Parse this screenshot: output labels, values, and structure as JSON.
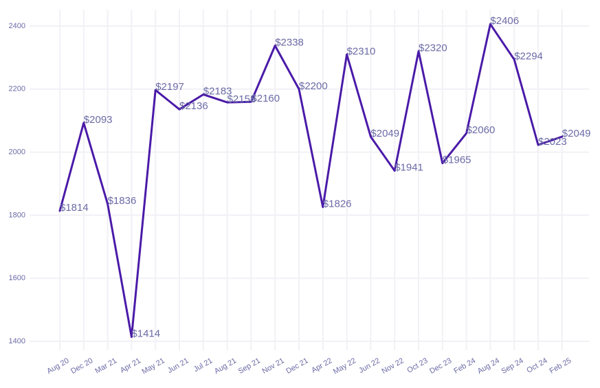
{
  "chart_data": {
    "type": "line",
    "title": "",
    "xlabel": "",
    "ylabel": "",
    "ylim": [
      1380,
      2450
    ],
    "grid": true,
    "legend": "none",
    "line_color": "#4a1aa8",
    "text_color": "#6a6aa6",
    "grid_color": "#f1f1f6",
    "y_ticks": [
      1400,
      1600,
      1800,
      2000,
      2200,
      2400
    ],
    "categories": [
      "Aug 20",
      "Dec 20",
      "Mar 21",
      "Apr 21",
      "May 21",
      "Jun 21",
      "Jul 21",
      "Aug 21",
      "Sep 21",
      "Nov 21",
      "Dec 21",
      "Apr 22",
      "May 22",
      "Jun 22",
      "Nov 22",
      "Oct 23",
      "Dec 23",
      "Feb 24",
      "Aug 24",
      "Sep 24",
      "Oct 24",
      "Feb 25"
    ],
    "series": [
      {
        "values": [
          1814,
          2093,
          1836,
          1414,
          2197,
          2136,
          2183,
          2158,
          2160,
          2338,
          2200,
          1826,
          2310,
          2049,
          1941,
          2320,
          1965,
          2060,
          2406,
          2294,
          2023,
          2049
        ],
        "labels": [
          "$1814",
          "$2093",
          "$1836",
          "$1414",
          "$2197",
          "$2136",
          "$2183",
          "$2158",
          "$2160",
          "$2338",
          "$2200",
          "$1826",
          "$2310",
          "$2049",
          "$1941",
          "$2320",
          "$1965",
          "$2060",
          "$2406",
          "$2294",
          "$2023",
          "$2049"
        ]
      }
    ]
  }
}
